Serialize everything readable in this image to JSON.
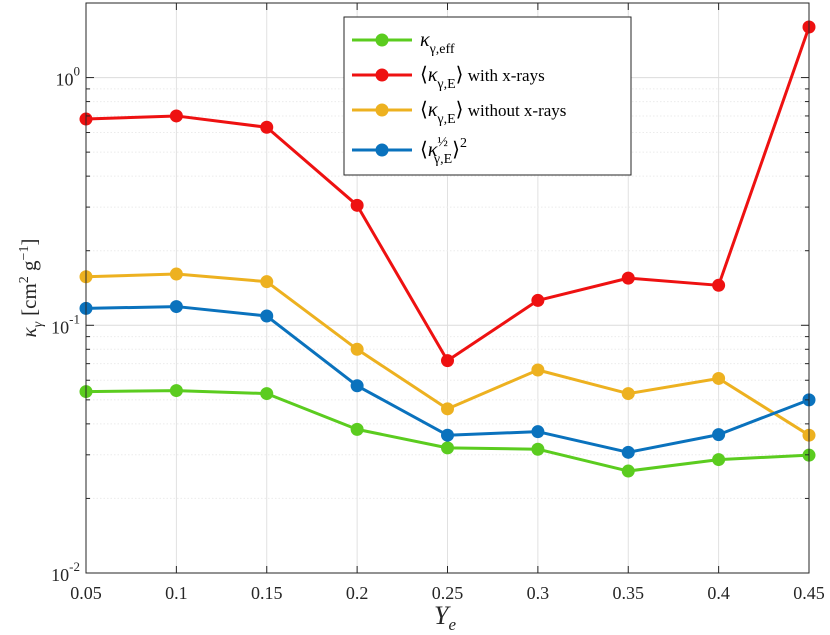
{
  "chart_data": {
    "type": "line",
    "x": [
      0.05,
      0.1,
      0.15,
      0.2,
      0.25,
      0.3,
      0.35,
      0.4,
      0.45
    ],
    "x_tick_labels": [
      "0.05",
      "0.1",
      "0.15",
      "0.2",
      "0.25",
      "0.3",
      "0.35",
      "0.4",
      "0.45"
    ],
    "xlim": [
      0.05,
      0.45
    ],
    "y_scale": "log",
    "ylim": [
      0.01,
      2.0
    ],
    "y_ticks": [
      {
        "value": 0.01,
        "base": "10",
        "exp": "-2"
      },
      {
        "value": 0.1,
        "base": "10",
        "exp": "-1"
      },
      {
        "value": 1,
        "base": "10",
        "exp": "0"
      }
    ],
    "xlabel": {
      "main": "Y",
      "sub": "e"
    },
    "ylabel": {
      "kappa": "κ",
      "sub": "γ",
      "bracket_open": "[cm",
      "sup_2": "2",
      "g": " g",
      "sup_m1": "−1",
      "bracket_close": "]"
    },
    "grid": true,
    "legend_position": "top-center",
    "series": [
      {
        "name": "κγ,eff",
        "label": {
          "kappa": "κ",
          "sub": "γ,eff",
          "suffix": ""
        },
        "color": "#5bcc1f",
        "values": [
          0.054,
          0.0545,
          0.053,
          0.038,
          0.032,
          0.0316,
          0.0258,
          0.0287,
          0.0299
        ]
      },
      {
        "name": "⟨κγ,E⟩ with x-rays",
        "label": {
          "open": "⟨",
          "kappa": "κ",
          "sub": "γ,E",
          "close": "⟩",
          "suffix": " with x-rays"
        },
        "color": "#ee1111",
        "values": [
          0.68,
          0.7,
          0.63,
          0.305,
          0.072,
          0.126,
          0.155,
          0.145,
          1.6
        ]
      },
      {
        "name": "⟨κγ,E⟩ without x-rays",
        "label": {
          "open": "⟨",
          "kappa": "κ",
          "sub": "γ,E",
          "close": "⟩",
          "suffix": " without x-rays"
        },
        "color": "#edb120",
        "values": [
          0.157,
          0.161,
          0.15,
          0.08,
          0.046,
          0.066,
          0.053,
          0.061,
          0.036
        ]
      },
      {
        "name": "⟨κγ,E^½⟩²",
        "label": {
          "open": "⟨",
          "kappa": "κ",
          "sub": "γ,E",
          "sup": "½",
          "close": "⟩",
          "outer_sup": "2",
          "suffix": ""
        },
        "color": "#0a72bd",
        "values": [
          0.117,
          0.119,
          0.109,
          0.057,
          0.036,
          0.0372,
          0.0307,
          0.0362,
          0.05
        ]
      }
    ]
  }
}
